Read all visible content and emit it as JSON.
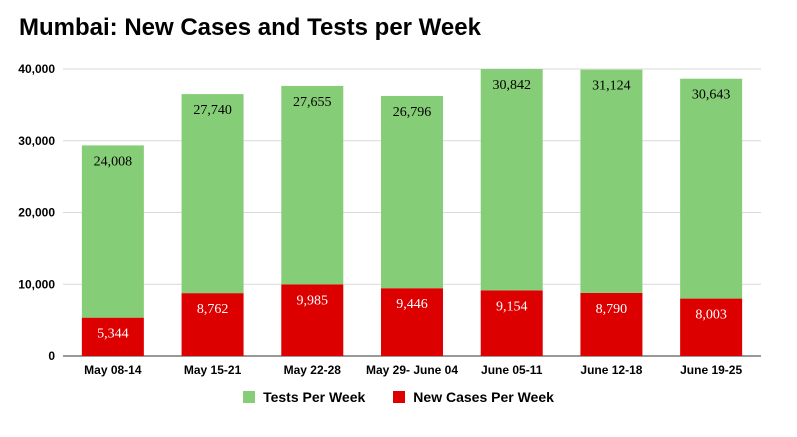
{
  "chart_data": {
    "type": "bar",
    "stacked": true,
    "title": "Mumbai: New Cases and Tests per Week",
    "categories": [
      "May 08-14",
      "May 15-21",
      "May 22-28",
      "May 29- June 04",
      "June  05-11",
      "June 12-18",
      "June 19-25"
    ],
    "series": [
      {
        "name": "New Cases Per Week",
        "color": "#dd0000",
        "values": [
          5344,
          8762,
          9985,
          9446,
          9154,
          8790,
          8003
        ],
        "labels": [
          "5,344",
          "8,762",
          "9,985",
          "9,446",
          "9,154",
          "8,790",
          "8,003"
        ]
      },
      {
        "name": "Tests Per Week",
        "color": "#86cd77",
        "values": [
          24008,
          27740,
          27655,
          26796,
          30842,
          31124,
          30643
        ],
        "labels": [
          "24,008",
          "27,740",
          "27,655",
          "26,796",
          "30,842",
          "31,124",
          "30,643"
        ]
      }
    ],
    "legend_order": [
      "Tests Per Week",
      "New Cases Per Week"
    ],
    "ylim": [
      0,
      40000
    ],
    "yticks": [
      0,
      10000,
      20000,
      30000,
      40000
    ],
    "ytick_labels": [
      "0",
      "10,000",
      "20,000",
      "30,000",
      "40,000"
    ],
    "xlabel": "",
    "ylabel": "",
    "grid": true,
    "legend_position": "bottom"
  }
}
